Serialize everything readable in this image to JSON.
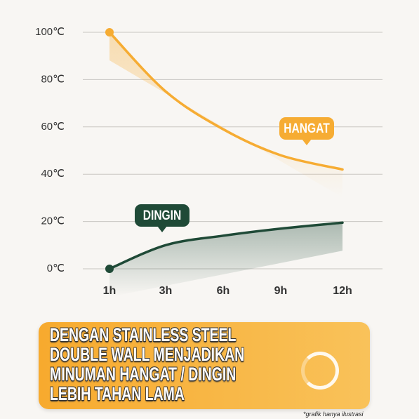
{
  "chart_data": {
    "type": "line",
    "categories": [
      "1h",
      "3h",
      "6h",
      "9h",
      "12h"
    ],
    "series": [
      {
        "name": "HANGAT",
        "color": "#f6ac33",
        "values": [
          100,
          75,
          59,
          48,
          42
        ]
      },
      {
        "name": "DINGIN",
        "color": "#1f4a37",
        "values": [
          0,
          10,
          14,
          17,
          19.5
        ]
      }
    ],
    "ylim": [
      0,
      100
    ],
    "yticks": [
      {
        "value": 0,
        "label": "0℃"
      },
      {
        "value": 20,
        "label": "20℃"
      },
      {
        "value": 40,
        "label": "40℃"
      },
      {
        "value": 60,
        "label": "60℃"
      },
      {
        "value": 80,
        "label": "80℃"
      },
      {
        "value": 100,
        "label": "100℃"
      }
    ],
    "grid": true,
    "headline": [
      "DENGAN STAINLESS STEEL",
      "DOUBLE WALL MENJADIKAN",
      "MINUMAN HANGAT / DINGIN",
      "LEBIH TAHAN LAMA"
    ],
    "footnote": "*grafik hanya ilustrasi"
  }
}
